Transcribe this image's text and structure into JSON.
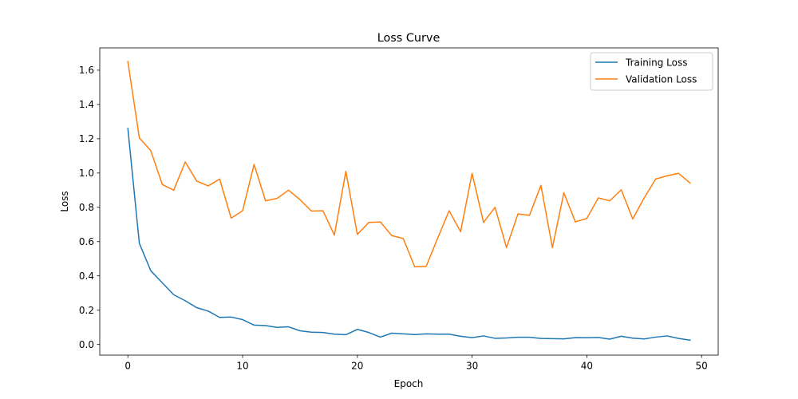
{
  "chart_data": {
    "type": "line",
    "title": "Loss Curve",
    "xlabel": "Epoch",
    "ylabel": "Loss",
    "xlim": [
      -2.45,
      51.45
    ],
    "ylim": [
      -0.062,
      1.73
    ],
    "xticks": [
      0,
      10,
      20,
      30,
      40,
      50
    ],
    "xtick_labels": [
      "0",
      "10",
      "20",
      "30",
      "40",
      "50"
    ],
    "yticks": [
      0.0,
      0.2,
      0.4,
      0.6,
      0.8,
      1.0,
      1.2,
      1.4,
      1.6
    ],
    "ytick_labels": [
      "0.0",
      "0.2",
      "0.4",
      "0.6",
      "0.8",
      "1.0",
      "1.2",
      "1.4",
      "1.6"
    ],
    "grid": false,
    "legend_position": "top-right",
    "x": [
      0,
      1,
      2,
      3,
      4,
      5,
      6,
      7,
      8,
      9,
      10,
      11,
      12,
      13,
      14,
      15,
      16,
      17,
      18,
      19,
      20,
      21,
      22,
      23,
      24,
      25,
      26,
      27,
      28,
      29,
      30,
      31,
      32,
      33,
      34,
      35,
      36,
      37,
      38,
      39,
      40,
      41,
      42,
      43,
      44,
      45,
      46,
      47,
      48,
      49
    ],
    "series": [
      {
        "name": "Training Loss",
        "color": "#1f77b4",
        "values": [
          1.26,
          0.59,
          0.43,
          0.36,
          0.29,
          0.255,
          0.215,
          0.195,
          0.158,
          0.16,
          0.145,
          0.113,
          0.11,
          0.1,
          0.103,
          0.08,
          0.072,
          0.07,
          0.06,
          0.057,
          0.088,
          0.07,
          0.043,
          0.066,
          0.062,
          0.058,
          0.062,
          0.06,
          0.06,
          0.048,
          0.04,
          0.05,
          0.036,
          0.038,
          0.042,
          0.042,
          0.035,
          0.034,
          0.033,
          0.04,
          0.039,
          0.041,
          0.031,
          0.048,
          0.037,
          0.032,
          0.043,
          0.05,
          0.035,
          0.025
        ]
      },
      {
        "name": "Validation Loss",
        "color": "#ff7f0e",
        "values": [
          1.65,
          1.205,
          1.13,
          0.933,
          0.9,
          1.065,
          0.953,
          0.925,
          0.965,
          0.737,
          0.78,
          1.05,
          0.838,
          0.852,
          0.9,
          0.845,
          0.778,
          0.78,
          0.638,
          1.01,
          0.642,
          0.712,
          0.715,
          0.635,
          0.618,
          0.453,
          0.456,
          0.62,
          0.78,
          0.658,
          0.998,
          0.712,
          0.8,
          0.565,
          0.762,
          0.753,
          0.928,
          0.565,
          0.885,
          0.715,
          0.735,
          0.855,
          0.838,
          0.902,
          0.732,
          0.855,
          0.965,
          0.984,
          0.998,
          0.942
        ]
      }
    ]
  }
}
